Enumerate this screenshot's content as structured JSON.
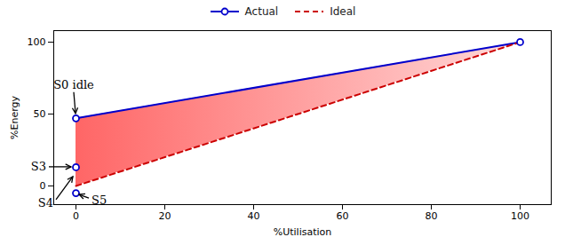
{
  "chart_data": {
    "type": "line",
    "xlabel": "%Utilisation",
    "ylabel": "%Energy",
    "xlim": [
      -5,
      107
    ],
    "ylim": [
      -13,
      108
    ],
    "xticks": [
      0,
      20,
      40,
      60,
      80,
      100
    ],
    "yticks": [
      0,
      50,
      100
    ],
    "grid": false,
    "legend": "top",
    "series": [
      {
        "name": "Actual",
        "type": "line",
        "color": "#0000cc",
        "marker": "circle",
        "line_style": "solid",
        "x": [
          0,
          100
        ],
        "values": [
          47,
          100
        ]
      },
      {
        "name": "Ideal",
        "type": "line",
        "color": "#cc0000",
        "line_style": "dashed",
        "x": [
          0,
          100
        ],
        "values": [
          0,
          100
        ]
      },
      {
        "type": "scatter",
        "color": "#0000cc",
        "marker": "circle",
        "x": [
          0,
          0
        ],
        "values": [
          13,
          -5
        ]
      },
      {
        "type": "area",
        "color": "#ff3333",
        "x": [
          0,
          100
        ],
        "values": [
          47,
          100
        ],
        "base": [
          0,
          100
        ]
      }
    ],
    "annotations": [
      {
        "text": "S0 idle",
        "x": 0,
        "y": 47
      },
      {
        "text": "S3",
        "x": 0,
        "y": 13
      },
      {
        "text": "S4",
        "x": 0,
        "y": 8
      },
      {
        "text": "S5",
        "x": 0,
        "y": -5
      }
    ]
  }
}
